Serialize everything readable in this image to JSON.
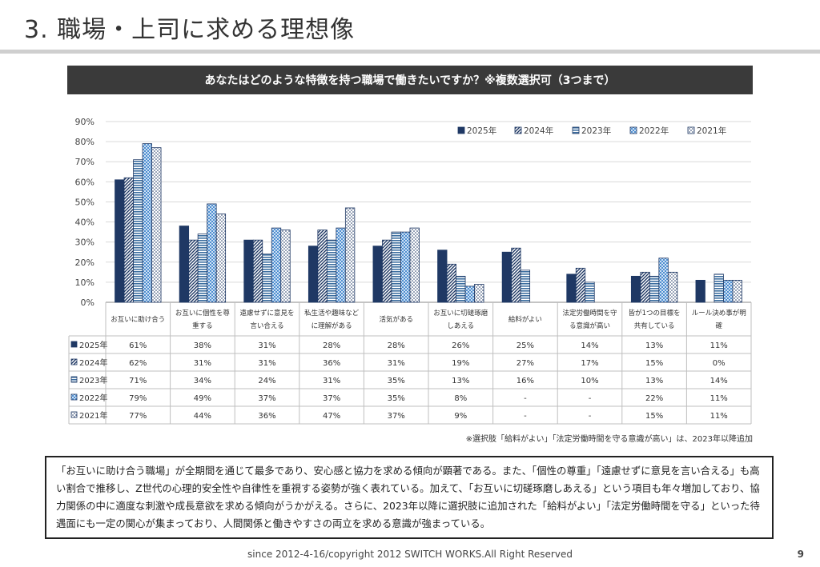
{
  "page_title": "3. 職場・上司に求める理想像",
  "question": "あなたはどのような特徴を持つ職場で働きたいですか？※複数選択可（3つまで）",
  "footnote": "※選択肢「給料がよい」「法定労働時間を守る意識が高い」は、2023年以降追加",
  "summary": "「お互いに助け合う職場」が全期間を通じて最多であり、安心感と協力を求める傾向が顕著である。また、「個性の尊重」「遠慮せずに意見を言い合える」も高い割合で推移し、Z世代の心理的安全性や自律性を重視する姿勢が強く表れている。加えて、「お互いに切磋琢磨しあえる」という項目も年々増加しており、協力関係の中に適度な刺激や成長意欲を求める傾向がうかがえる。さらに、2023年以降に選択肢に追加された「給料がよい」「法定労働時間を守る」といった待遇面にも一定の関心が集まっており、人間関係と働きやすさの両立を求める意識が強まっている。",
  "copyright": "since 2012-4-16/copyright 2012 SWITCH WORKS.All Right Reserved",
  "page_number": "9",
  "chart_data": {
    "type": "bar",
    "ylim": [
      0,
      90
    ],
    "y_ticks": [
      "0%",
      "10%",
      "20%",
      "30%",
      "40%",
      "50%",
      "60%",
      "70%",
      "80%",
      "90%"
    ],
    "legend_position": "top-right",
    "grid": true,
    "categories": [
      [
        "お互いに助け合う"
      ],
      [
        "お互いに個性を尊",
        "重する"
      ],
      [
        "遠慮せずに意見を",
        "言い合える"
      ],
      [
        "私生活や趣味など",
        "に理解がある"
      ],
      [
        "活気がある"
      ],
      [
        "お互いに切磋琢磨",
        "しあえる"
      ],
      [
        "給料がよい"
      ],
      [
        "法定労働時間を守",
        "る意識が高い"
      ],
      [
        "皆が1つの目標を",
        "共有している"
      ],
      [
        "ルール決め事が明",
        "確"
      ]
    ],
    "series": [
      {
        "name": "2025年",
        "pattern": "solid",
        "color": "#1f3864",
        "values": [
          61,
          38,
          31,
          28,
          28,
          26,
          25,
          14,
          13,
          11
        ],
        "labels": [
          "61%",
          "38%",
          "31%",
          "28%",
          "28%",
          "26%",
          "25%",
          "14%",
          "13%",
          "11%"
        ]
      },
      {
        "name": "2024年",
        "pattern": "diagonal",
        "color": "#1f3864",
        "values": [
          62,
          31,
          31,
          36,
          31,
          19,
          27,
          17,
          15,
          0
        ],
        "labels": [
          "62%",
          "31%",
          "31%",
          "36%",
          "31%",
          "19%",
          "27%",
          "17%",
          "15%",
          "0%"
        ]
      },
      {
        "name": "2023年",
        "pattern": "horizontal",
        "color": "#3d6fa0",
        "values": [
          71,
          34,
          24,
          31,
          35,
          13,
          16,
          10,
          13,
          14
        ],
        "labels": [
          "71%",
          "34%",
          "24%",
          "31%",
          "35%",
          "13%",
          "16%",
          "10%",
          "13%",
          "14%"
        ]
      },
      {
        "name": "2022年",
        "pattern": "checker",
        "color": "#4f8fd0",
        "values": [
          79,
          49,
          37,
          37,
          35,
          8,
          null,
          null,
          22,
          11
        ],
        "labels": [
          "79%",
          "49%",
          "37%",
          "37%",
          "35%",
          "8%",
          "-",
          "-",
          "22%",
          "11%"
        ]
      },
      {
        "name": "2021年",
        "pattern": "dots",
        "color": "#1f3864",
        "values": [
          77,
          44,
          36,
          47,
          37,
          9,
          null,
          null,
          15,
          11
        ],
        "labels": [
          "77%",
          "44%",
          "36%",
          "47%",
          "37%",
          "9%",
          "-",
          "-",
          "15%",
          "11%"
        ]
      }
    ]
  }
}
